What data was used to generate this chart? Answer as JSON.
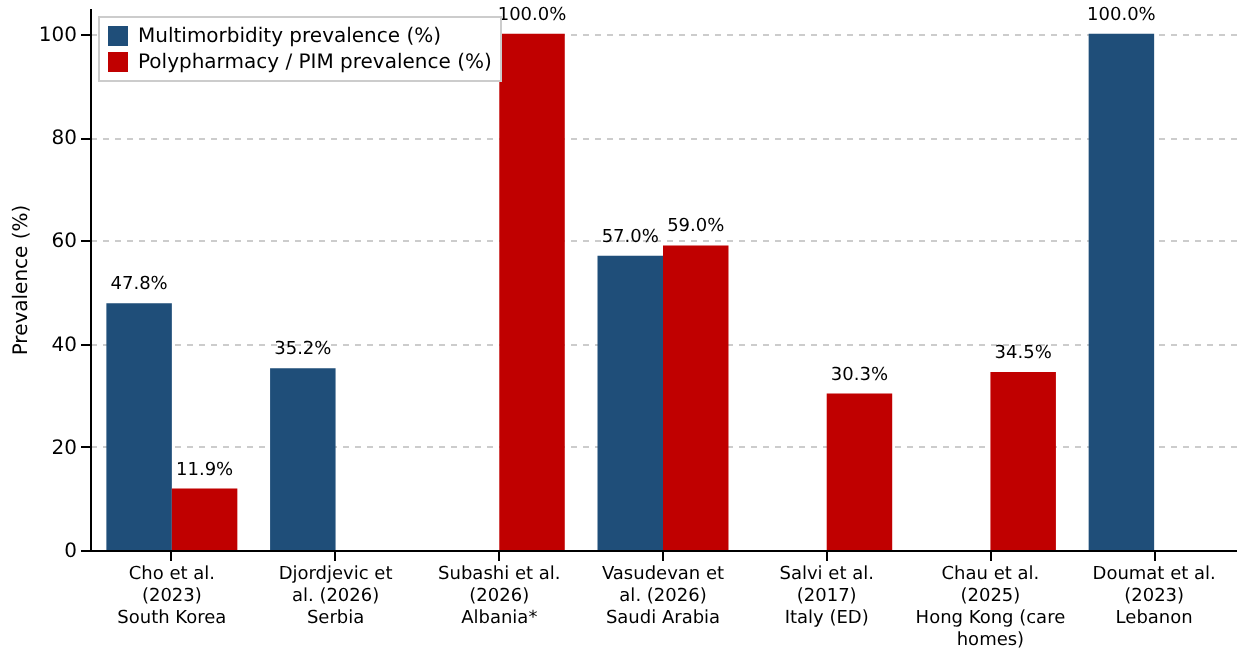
{
  "chart_data": {
    "type": "bar",
    "ylabel": "Prevalence (%)",
    "categories": [
      "Cho et al. (2023)\nSouth Korea",
      "Djordjevic et al. (2026)\nSerbia",
      "Subashi et al. (2026)\nAlbania*",
      "Vasudevan et al. (2026)\nSaudi Arabia",
      "Salvi et al. (2017)\nItaly (ED)",
      "Chau et al. (2025)\nHong Kong (care homes)",
      "Doumat et al. (2023)\nLebanon"
    ],
    "series": [
      {
        "name": "Multimorbidity prevalence (%)",
        "color": "#1f4e79",
        "values": [
          47.8,
          35.2,
          null,
          57.0,
          null,
          null,
          100.0
        ],
        "value_labels": [
          "47.8%",
          "35.2%",
          null,
          "57.0%",
          null,
          null,
          "100.0%"
        ]
      },
      {
        "name": "Polypharmacy / PIM prevalence (%)",
        "color": "#c00000",
        "values": [
          11.9,
          null,
          100.0,
          59.0,
          30.3,
          34.5,
          null
        ],
        "value_labels": [
          "11.9%",
          null,
          "100.0%",
          "59.0%",
          "30.3%",
          "34.5%",
          null
        ]
      }
    ],
    "ylim": [
      0,
      105
    ],
    "yticks": [
      0,
      20,
      40,
      60,
      80,
      100
    ],
    "grid": "y",
    "legend": "top left"
  }
}
